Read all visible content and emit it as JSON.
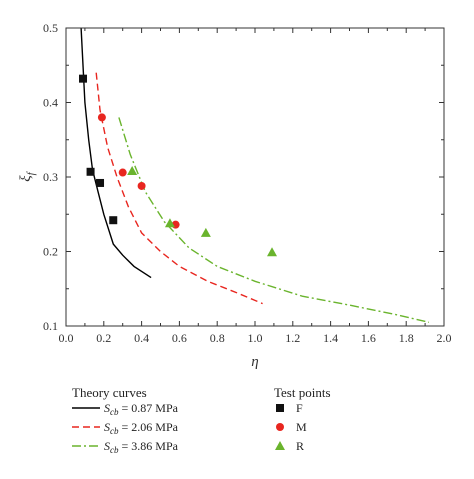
{
  "chart_data": {
    "type": "line",
    "xlabel": "η",
    "ylabel": "ξ",
    "ylabel_sub": "f",
    "xlim": [
      0.0,
      2.0
    ],
    "ylim": [
      0.1,
      0.5
    ],
    "xticks": [
      "0.0",
      "0.2",
      "0.4",
      "0.6",
      "0.8",
      "1.0",
      "1.2",
      "1.4",
      "1.6",
      "1.8",
      "2.0"
    ],
    "yticks": [
      "0.1",
      "0.2",
      "0.3",
      "0.4",
      "0.5"
    ],
    "grid": false,
    "theory_curves_title": "Theory curves",
    "test_points_title": "Test points",
    "curves": [
      {
        "label_sym": "S",
        "label_sub": "cb",
        "label_rest": " = 0.87 MPa",
        "color": "#000000",
        "dash": "solid",
        "x": [
          0.08,
          0.09,
          0.1,
          0.12,
          0.14,
          0.17,
          0.2,
          0.25,
          0.3,
          0.36,
          0.45
        ],
        "y": [
          0.5,
          0.45,
          0.4,
          0.35,
          0.31,
          0.28,
          0.25,
          0.21,
          0.195,
          0.18,
          0.165
        ]
      },
      {
        "label_sym": "S",
        "label_sub": "cb",
        "label_rest": " = 2.06 MPa",
        "color": "#e8261f",
        "dash": "dashed",
        "x": [
          0.16,
          0.18,
          0.22,
          0.27,
          0.33,
          0.4,
          0.5,
          0.6,
          0.75,
          0.9,
          1.04
        ],
        "y": [
          0.44,
          0.39,
          0.34,
          0.3,
          0.26,
          0.225,
          0.2,
          0.18,
          0.16,
          0.145,
          0.13
        ]
      },
      {
        "label_sym": "S",
        "label_sub": "cb",
        "label_rest": " = 3.86 MPa",
        "color": "#6ab42d",
        "dash": "dashdot",
        "x": [
          0.28,
          0.34,
          0.42,
          0.52,
          0.65,
          0.8,
          1.0,
          1.25,
          1.5,
          1.75,
          1.92
        ],
        "y": [
          0.38,
          0.33,
          0.28,
          0.24,
          0.205,
          0.18,
          0.16,
          0.14,
          0.128,
          0.115,
          0.105
        ]
      }
    ],
    "points": [
      {
        "label": "F",
        "marker": "square",
        "color": "#111111",
        "x": [
          0.09,
          0.13,
          0.18,
          0.25
        ],
        "y": [
          0.432,
          0.307,
          0.292,
          0.242
        ]
      },
      {
        "label": "M",
        "marker": "circle",
        "color": "#e8261f",
        "x": [
          0.19,
          0.3,
          0.4,
          0.58
        ],
        "y": [
          0.38,
          0.306,
          0.288,
          0.236
        ]
      },
      {
        "label": "R",
        "marker": "triangle",
        "color": "#6ab42d",
        "x": [
          0.35,
          0.55,
          0.74,
          1.09
        ],
        "y": [
          0.308,
          0.238,
          0.225,
          0.199
        ]
      }
    ]
  }
}
